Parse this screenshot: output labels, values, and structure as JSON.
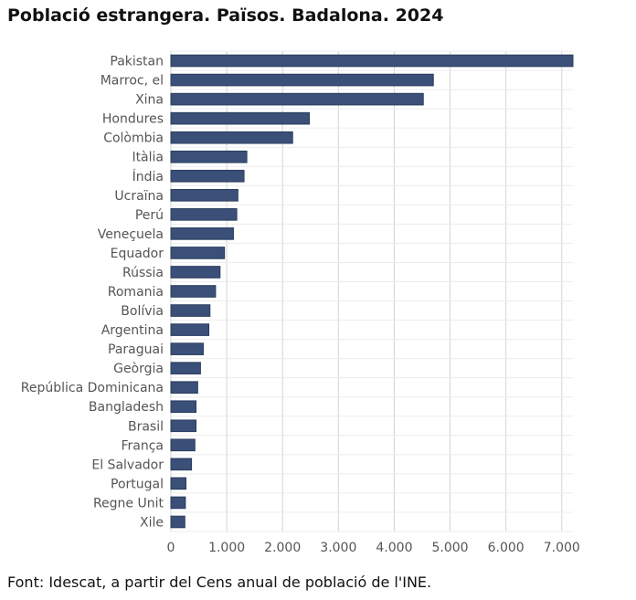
{
  "title": "Població estrangera. Països. Badalona. 2024",
  "source": "Font: Idescat, a partir del Cens anual de població de l'INE.",
  "colors": {
    "bar": "#3a5078",
    "bar_border": "#2a3c5e",
    "grid": "#d4d4d4"
  },
  "chart_data": {
    "type": "bar",
    "orientation": "horizontal",
    "categories": [
      "Pakistan",
      "Marroc, el",
      "Xina",
      "Hondures",
      "Colòmbia",
      "Itàlia",
      "Índia",
      "Ucraïna",
      "Perú",
      "Veneçuela",
      "Equador",
      "Rússia",
      "Romania",
      "Bolívia",
      "Argentina",
      "Paraguai",
      "Geòrgia",
      "República Dominicana",
      "Bangladesh",
      "Brasil",
      "França",
      "El Salvador",
      "Portugal",
      "Regne Unit",
      "Xile"
    ],
    "values": [
      7200,
      4700,
      4520,
      2480,
      2180,
      1360,
      1310,
      1200,
      1180,
      1120,
      960,
      880,
      800,
      700,
      680,
      580,
      530,
      480,
      450,
      450,
      430,
      370,
      270,
      260,
      250
    ],
    "xlim": [
      0,
      7200
    ],
    "xticks": [
      0,
      1000,
      2000,
      3000,
      4000,
      5000,
      6000,
      7000
    ],
    "xtick_labels": [
      "0",
      "1.000",
      "2.000",
      "3.000",
      "4.000",
      "5.000",
      "6.000",
      "7.000"
    ],
    "grid": true
  }
}
